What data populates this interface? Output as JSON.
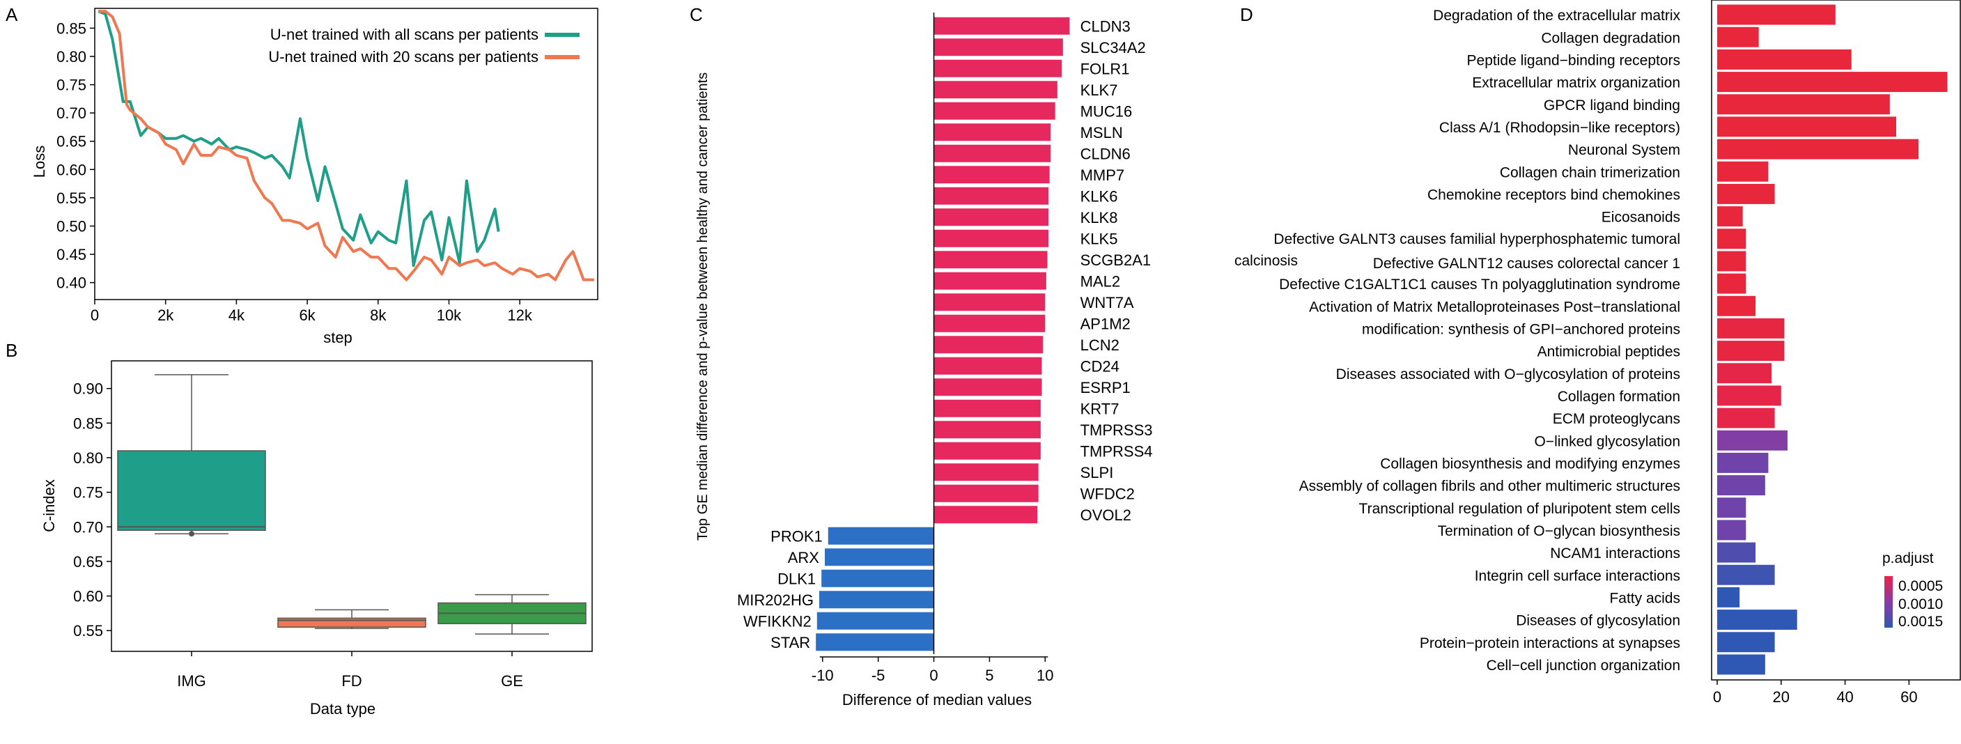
{
  "panels": {
    "a": "A",
    "b": "B",
    "c": "C",
    "d": "D"
  },
  "colors": {
    "teal": "#1f9e89",
    "orange": "#f07850",
    "green": "#3a9c48",
    "pink": "#e6285e",
    "blue": "#2b70c4",
    "grid_text": "#000000"
  },
  "chart_data": [
    {
      "id": "a",
      "type": "line",
      "xlabel": "step",
      "ylabel": "Loss",
      "xlim": [
        0,
        14200
      ],
      "ylim": [
        0.37,
        0.885
      ],
      "x_ticks": [
        0,
        2000,
        4000,
        6000,
        8000,
        10000,
        12000
      ],
      "x_tick_labels": [
        "0",
        "2k",
        "4k",
        "6k",
        "8k",
        "10k",
        "12k"
      ],
      "y_ticks": [
        0.4,
        0.45,
        0.5,
        0.55,
        0.6,
        0.65,
        0.7,
        0.75,
        0.8,
        0.85
      ],
      "y_tick_labels": [
        "0.40",
        "0.45",
        "0.50",
        "0.55",
        "0.60",
        "0.65",
        "0.70",
        "0.75",
        "0.80",
        "0.85"
      ],
      "legend_position": "top-right",
      "series": [
        {
          "name": "U-net trained with all scans per patients",
          "color": "#1f9e89",
          "x": [
            100,
            300,
            500,
            800,
            1000,
            1300,
            1500,
            1800,
            2000,
            2300,
            2500,
            2800,
            3000,
            3300,
            3500,
            3800,
            4000,
            4300,
            4500,
            4800,
            5000,
            5300,
            5500,
            5800,
            6000,
            6300,
            6500,
            6800,
            7000,
            7300,
            7500,
            7800,
            8000,
            8300,
            8500,
            8800,
            9000,
            9300,
            9500,
            9800,
            10000,
            10300,
            10500,
            10800,
            11000,
            11300,
            11400
          ],
          "y": [
            0.88,
            0.875,
            0.83,
            0.72,
            0.72,
            0.66,
            0.675,
            0.665,
            0.655,
            0.655,
            0.66,
            0.65,
            0.655,
            0.645,
            0.655,
            0.635,
            0.64,
            0.635,
            0.63,
            0.62,
            0.625,
            0.605,
            0.585,
            0.69,
            0.62,
            0.545,
            0.605,
            0.54,
            0.495,
            0.475,
            0.52,
            0.47,
            0.49,
            0.475,
            0.47,
            0.58,
            0.43,
            0.51,
            0.525,
            0.44,
            0.515,
            0.435,
            0.58,
            0.455,
            0.475,
            0.53,
            0.49
          ]
        },
        {
          "name": "U-net trained with 20 scans per patients",
          "color": "#f07850",
          "x": [
            100,
            300,
            500,
            700,
            900,
            1000,
            1300,
            1500,
            1800,
            2000,
            2300,
            2500,
            2800,
            3000,
            3300,
            3500,
            3800,
            4000,
            4300,
            4500,
            4800,
            5000,
            5300,
            5500,
            5800,
            6000,
            6300,
            6500,
            6800,
            7000,
            7300,
            7500,
            7800,
            8000,
            8300,
            8500,
            8800,
            9000,
            9300,
            9500,
            9800,
            10000,
            10300,
            10500,
            10800,
            11000,
            11300,
            11500,
            11800,
            12000,
            12300,
            12500,
            12800,
            13000,
            13300,
            13500,
            13800,
            14100
          ],
          "y": [
            0.88,
            0.88,
            0.87,
            0.84,
            0.715,
            0.705,
            0.69,
            0.675,
            0.665,
            0.645,
            0.635,
            0.61,
            0.645,
            0.625,
            0.625,
            0.64,
            0.635,
            0.625,
            0.62,
            0.58,
            0.55,
            0.54,
            0.51,
            0.51,
            0.505,
            0.495,
            0.505,
            0.465,
            0.445,
            0.48,
            0.455,
            0.46,
            0.445,
            0.445,
            0.425,
            0.425,
            0.405,
            0.42,
            0.445,
            0.44,
            0.415,
            0.445,
            0.43,
            0.435,
            0.44,
            0.43,
            0.435,
            0.425,
            0.415,
            0.425,
            0.42,
            0.41,
            0.415,
            0.405,
            0.44,
            0.455,
            0.405,
            0.405
          ]
        }
      ]
    },
    {
      "id": "b",
      "type": "box",
      "xlabel": "Data type",
      "ylabel": "C-index",
      "ylim": [
        0.52,
        0.94
      ],
      "y_ticks": [
        0.55,
        0.6,
        0.65,
        0.7,
        0.75,
        0.8,
        0.85,
        0.9
      ],
      "y_tick_labels": [
        "0.55",
        "0.60",
        "0.65",
        "0.70",
        "0.75",
        "0.80",
        "0.85",
        "0.90"
      ],
      "categories": [
        "IMG",
        "FD",
        "GE"
      ],
      "boxes": [
        {
          "label": "IMG",
          "min": 0.69,
          "q1": 0.695,
          "median": 0.7,
          "q3": 0.81,
          "max": 0.92,
          "outliers": [
            0.69
          ],
          "color": "#1f9e89"
        },
        {
          "label": "FD",
          "min": 0.553,
          "q1": 0.555,
          "median": 0.565,
          "q3": 0.568,
          "max": 0.58,
          "outliers": [],
          "color": "#f07850"
        },
        {
          "label": "GE",
          "min": 0.545,
          "q1": 0.56,
          "median": 0.575,
          "q3": 0.59,
          "max": 0.602,
          "outliers": [],
          "color": "#3a9c48"
        }
      ]
    },
    {
      "id": "c",
      "type": "bar",
      "orientation": "horizontal",
      "xlabel": "Difference of median values",
      "ylabel": "Top GE median difference and p-value between healthy and cancer patients",
      "xlim": [
        -10.8,
        12.8
      ],
      "x_ticks": [
        -10,
        -5,
        0,
        5,
        10
      ],
      "x_tick_labels": [
        "-10",
        "-5",
        "0",
        "5",
        "10"
      ],
      "categories": [
        "CLDN3",
        "SLC34A2",
        "FOLR1",
        "KLK7",
        "MUC16",
        "MSLN",
        "CLDN6",
        "MMP7",
        "KLK6",
        "KLK8",
        "KLK5",
        "SCGB2A1",
        "MAL2",
        "WNT7A",
        "AP1M2",
        "LCN2",
        "CD24",
        "ESRP1",
        "KRT7",
        "TMPRSS3",
        "TMPRSS4",
        "SLPI",
        "WFDC2",
        "OVOL2",
        "PROK1",
        "ARX",
        "DLK1",
        "MIR202HG",
        "WFIKKN2",
        "STAR"
      ],
      "values": [
        12.2,
        11.6,
        11.5,
        11.1,
        10.9,
        10.5,
        10.5,
        10.4,
        10.3,
        10.3,
        10.3,
        10.2,
        10.1,
        10.0,
        10.0,
        9.8,
        9.7,
        9.7,
        9.6,
        9.6,
        9.6,
        9.4,
        9.4,
        9.3,
        -9.5,
        -9.8,
        -10.1,
        -10.3,
        -10.5,
        -10.6
      ]
    },
    {
      "id": "d",
      "type": "bar",
      "orientation": "horizontal",
      "xlim": [
        0,
        73
      ],
      "x_ticks": [
        0,
        20,
        40,
        60
      ],
      "x_tick_labels": [
        "0",
        "20",
        "40",
        "60"
      ],
      "legend_title": "p.adjust",
      "legend_ticks": [
        "0.0005",
        "0.0010",
        "0.0015"
      ],
      "color_scale": [
        "#e8273c",
        "#e42458",
        "#7a40a8",
        "#2f58b4"
      ],
      "categories": [
        "Degradation of the extracellular matrix",
        "Collagen degradation",
        "Peptide ligand−binding receptors",
        "Extracellular matrix organization",
        "GPCR ligand binding",
        "Class A/1 (Rhodopsin−like receptors)",
        "Neuronal System",
        "Collagen chain trimerization",
        "Chemokine receptors bind chemokines",
        "Eicosanoids",
        "Defective GALNT3 causes familial hyperphosphatemic tumoral calcinosis",
        "Defective GALNT12 causes colorectal cancer 1",
        "Defective C1GALT1C1 causes Tn polyagglutination syndrome",
        "Activation of Matrix Metalloproteinases Post−translational",
        "modification: synthesis of GPI−anchored proteins",
        "Antimicrobial peptides",
        "Diseases associated with O−glycosylation of proteins",
        "Collagen formation",
        "ECM proteoglycans",
        "O−linked glycosylation",
        "Collagen biosynthesis and modifying enzymes",
        "Assembly of collagen fibrils and other multimeric structures",
        "Transcriptional regulation of pluripotent stem cells",
        "Termination of O−glycan biosynthesis",
        "NCAM1 interactions",
        "Integrin cell surface interactions",
        "Fatty acids",
        "Diseases of glycosylation",
        "Protein−protein interactions at synapses",
        "Cell−cell junction organization"
      ],
      "values": [
        37,
        13,
        42,
        72,
        54,
        56,
        63,
        16,
        18,
        8,
        9,
        9,
        9,
        12,
        21,
        21,
        17,
        20,
        18,
        22,
        16,
        15,
        9,
        9,
        12,
        18,
        7,
        25,
        18,
        15
      ],
      "p_adjust": [
        0.0002,
        0.0002,
        0.0002,
        0.0002,
        0.0002,
        0.0002,
        0.0002,
        0.0002,
        0.0002,
        0.0002,
        0.0002,
        0.0002,
        0.0002,
        0.0002,
        0.0003,
        0.0003,
        0.0004,
        0.0004,
        0.0004,
        0.0011,
        0.0012,
        0.0012,
        0.0012,
        0.0012,
        0.0014,
        0.0015,
        0.0016,
        0.0016,
        0.0016,
        0.0016
      ]
    }
  ]
}
